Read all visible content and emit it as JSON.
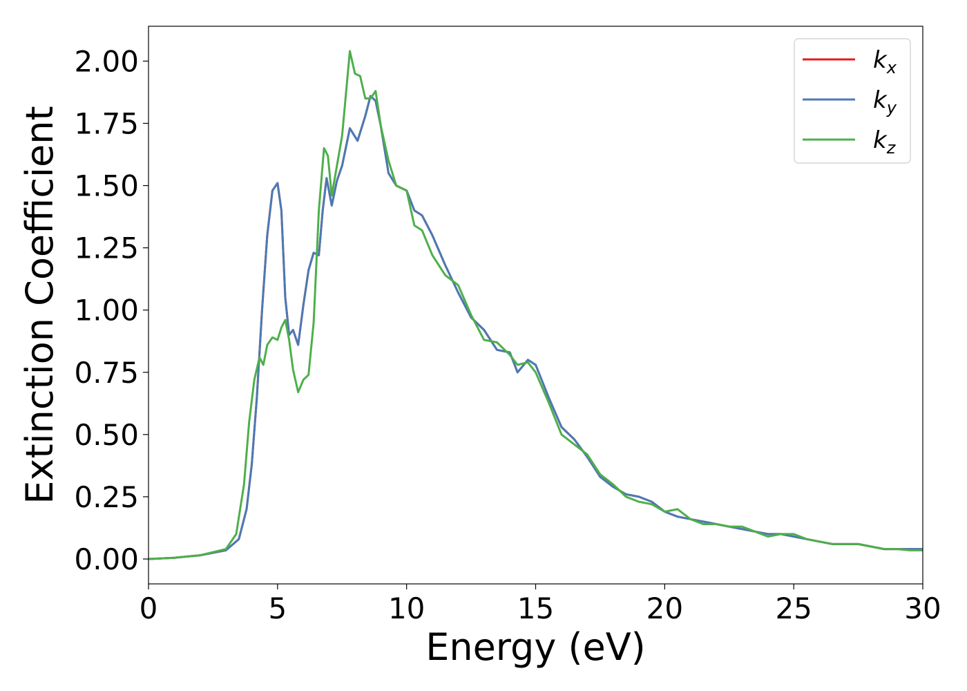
{
  "chart_data": {
    "type": "line",
    "title": "",
    "xlabel": "Energy (eV)",
    "ylabel": "Extinction Coefficient",
    "xlim": [
      0,
      30
    ],
    "ylim": [
      -0.1,
      2.14
    ],
    "xticks": [
      0,
      5,
      10,
      15,
      20,
      25,
      30
    ],
    "xtick_labels": [
      "0",
      "5",
      "10",
      "15",
      "20",
      "25",
      "30"
    ],
    "yticks": [
      0.0,
      0.25,
      0.5,
      0.75,
      1.0,
      1.25,
      1.5,
      1.75,
      2.0
    ],
    "ytick_labels": [
      "0.00",
      "0.25",
      "0.50",
      "0.75",
      "1.00",
      "1.25",
      "1.50",
      "1.75",
      "2.00"
    ],
    "grid": false,
    "legend_position": "top-right",
    "series": [
      {
        "name": "k",
        "name_sub": "x",
        "color": "#e41a1c",
        "x": [
          0,
          1,
          2,
          3,
          3.5,
          3.8,
          4.0,
          4.2,
          4.4,
          4.6,
          4.8,
          5.0,
          5.15,
          5.3,
          5.45,
          5.6,
          5.8,
          6.0,
          6.2,
          6.4,
          6.6,
          6.75,
          6.9,
          7.1,
          7.3,
          7.5,
          7.8,
          8.1,
          8.4,
          8.6,
          8.8,
          9.0,
          9.3,
          9.6,
          10.0,
          10.3,
          10.6,
          11.0,
          11.5,
          12.0,
          12.5,
          13.0,
          13.5,
          14.0,
          14.3,
          14.7,
          15.0,
          15.5,
          16.0,
          16.5,
          17.0,
          17.5,
          18.0,
          18.5,
          19.0,
          19.5,
          20.0,
          20.5,
          21.0,
          21.5,
          22.0,
          22.5,
          23.0,
          23.5,
          24.0,
          24.5,
          25.0,
          25.5,
          26.0,
          26.5,
          27.0,
          27.5,
          28.0,
          28.5,
          29.0,
          29.5,
          30.0
        ],
        "y": [
          0.0,
          0.005,
          0.015,
          0.035,
          0.08,
          0.2,
          0.38,
          0.65,
          1.0,
          1.3,
          1.48,
          1.51,
          1.4,
          1.05,
          0.9,
          0.92,
          0.86,
          1.02,
          1.16,
          1.23,
          1.22,
          1.4,
          1.53,
          1.42,
          1.52,
          1.58,
          1.73,
          1.68,
          1.78,
          1.86,
          1.84,
          1.74,
          1.55,
          1.5,
          1.48,
          1.4,
          1.38,
          1.3,
          1.18,
          1.07,
          0.97,
          0.92,
          0.84,
          0.83,
          0.75,
          0.8,
          0.78,
          0.65,
          0.53,
          0.48,
          0.41,
          0.33,
          0.29,
          0.26,
          0.25,
          0.23,
          0.19,
          0.17,
          0.16,
          0.15,
          0.14,
          0.13,
          0.12,
          0.11,
          0.1,
          0.1,
          0.09,
          0.08,
          0.07,
          0.06,
          0.06,
          0.06,
          0.05,
          0.04,
          0.04,
          0.04,
          0.04
        ]
      },
      {
        "name": "k",
        "name_sub": "y",
        "color": "#4a7ab5",
        "x": [
          0,
          1,
          2,
          3,
          3.5,
          3.8,
          4.0,
          4.2,
          4.4,
          4.6,
          4.8,
          5.0,
          5.15,
          5.3,
          5.45,
          5.6,
          5.8,
          6.0,
          6.2,
          6.4,
          6.6,
          6.75,
          6.9,
          7.1,
          7.3,
          7.5,
          7.8,
          8.1,
          8.4,
          8.6,
          8.8,
          9.0,
          9.3,
          9.6,
          10.0,
          10.3,
          10.6,
          11.0,
          11.5,
          12.0,
          12.5,
          13.0,
          13.5,
          14.0,
          14.3,
          14.7,
          15.0,
          15.5,
          16.0,
          16.5,
          17.0,
          17.5,
          18.0,
          18.5,
          19.0,
          19.5,
          20.0,
          20.5,
          21.0,
          21.5,
          22.0,
          22.5,
          23.0,
          23.5,
          24.0,
          24.5,
          25.0,
          25.5,
          26.0,
          26.5,
          27.0,
          27.5,
          28.0,
          28.5,
          29.0,
          29.5,
          30.0
        ],
        "y": [
          0.0,
          0.005,
          0.015,
          0.035,
          0.08,
          0.2,
          0.38,
          0.65,
          1.0,
          1.3,
          1.48,
          1.51,
          1.4,
          1.05,
          0.9,
          0.92,
          0.86,
          1.02,
          1.16,
          1.23,
          1.22,
          1.4,
          1.53,
          1.42,
          1.52,
          1.58,
          1.73,
          1.68,
          1.78,
          1.86,
          1.84,
          1.74,
          1.55,
          1.5,
          1.48,
          1.4,
          1.38,
          1.3,
          1.18,
          1.07,
          0.97,
          0.92,
          0.84,
          0.83,
          0.75,
          0.8,
          0.78,
          0.65,
          0.53,
          0.48,
          0.41,
          0.33,
          0.29,
          0.26,
          0.25,
          0.23,
          0.19,
          0.17,
          0.16,
          0.15,
          0.14,
          0.13,
          0.12,
          0.11,
          0.1,
          0.1,
          0.09,
          0.08,
          0.07,
          0.06,
          0.06,
          0.06,
          0.05,
          0.04,
          0.04,
          0.04,
          0.04
        ]
      },
      {
        "name": "k",
        "name_sub": "z",
        "color": "#4daf4a",
        "x": [
          0,
          1,
          2,
          3,
          3.4,
          3.7,
          3.9,
          4.1,
          4.3,
          4.45,
          4.6,
          4.8,
          5.0,
          5.15,
          5.3,
          5.45,
          5.6,
          5.8,
          6.0,
          6.2,
          6.4,
          6.6,
          6.8,
          6.95,
          7.1,
          7.3,
          7.5,
          7.8,
          8.0,
          8.2,
          8.4,
          8.6,
          8.8,
          9.0,
          9.3,
          9.6,
          10.0,
          10.3,
          10.6,
          11.0,
          11.5,
          12.0,
          12.5,
          13.0,
          13.5,
          14.0,
          14.3,
          14.7,
          15.0,
          15.5,
          16.0,
          16.5,
          17.0,
          17.5,
          18.0,
          18.5,
          19.0,
          19.5,
          20.0,
          20.5,
          21.0,
          21.5,
          22.0,
          22.5,
          23.0,
          23.5,
          24.0,
          24.5,
          25.0,
          25.5,
          26.0,
          26.5,
          27.0,
          27.5,
          28.0,
          28.5,
          29.0,
          29.5,
          30.0
        ],
        "y": [
          0.0,
          0.005,
          0.015,
          0.04,
          0.1,
          0.3,
          0.55,
          0.72,
          0.81,
          0.78,
          0.86,
          0.89,
          0.88,
          0.93,
          0.96,
          0.88,
          0.76,
          0.67,
          0.72,
          0.74,
          0.95,
          1.4,
          1.65,
          1.62,
          1.46,
          1.58,
          1.7,
          2.04,
          1.95,
          1.94,
          1.85,
          1.85,
          1.88,
          1.74,
          1.6,
          1.5,
          1.48,
          1.34,
          1.32,
          1.22,
          1.14,
          1.1,
          0.98,
          0.88,
          0.87,
          0.82,
          0.78,
          0.79,
          0.75,
          0.63,
          0.5,
          0.46,
          0.42,
          0.34,
          0.3,
          0.25,
          0.23,
          0.22,
          0.19,
          0.2,
          0.16,
          0.14,
          0.14,
          0.13,
          0.13,
          0.11,
          0.09,
          0.1,
          0.1,
          0.08,
          0.07,
          0.06,
          0.06,
          0.06,
          0.05,
          0.04,
          0.04,
          0.035,
          0.035
        ]
      }
    ]
  }
}
